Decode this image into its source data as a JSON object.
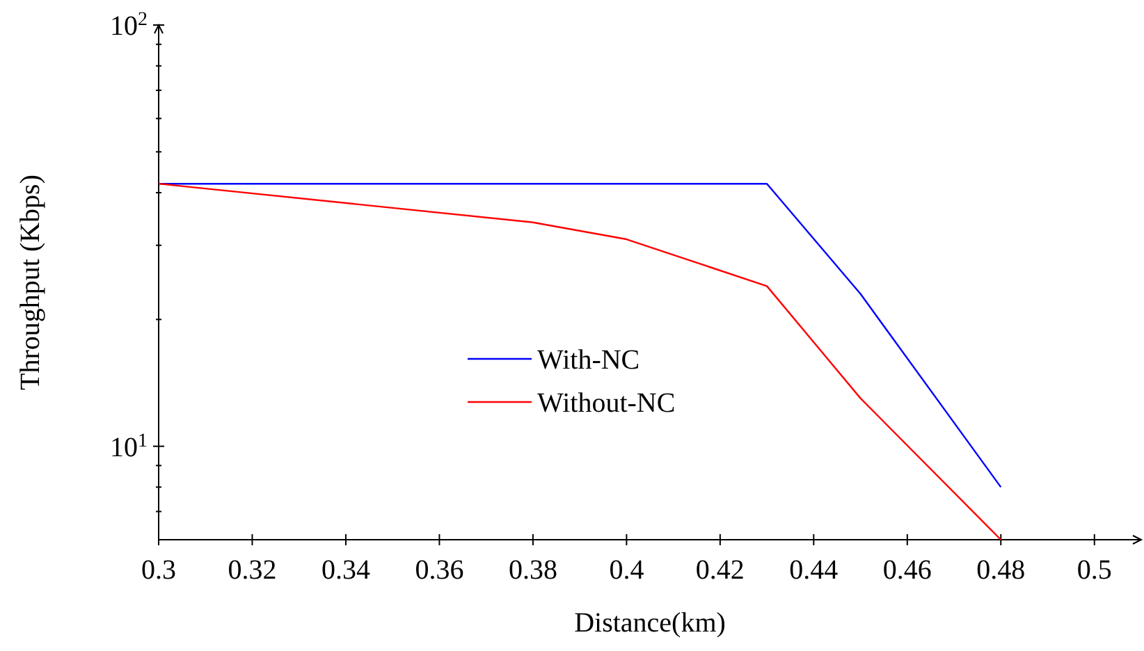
{
  "chart_data": {
    "type": "line",
    "xlabel": "Distance(km)",
    "ylabel": "Throughput (Kbps)",
    "x": [
      0.3,
      0.38,
      0.4,
      0.43,
      0.45,
      0.48
    ],
    "series": [
      {
        "name": "With-NC",
        "color": "#0000ff",
        "values": [
          42,
          42,
          42,
          42,
          23,
          8
        ]
      },
      {
        "name": "Without-NC",
        "color": "#ff0000",
        "values": [
          42,
          34,
          31,
          24,
          13,
          6
        ]
      }
    ],
    "log": "y",
    "xlim": [
      0.3,
      0.51
    ],
    "ylim": [
      6,
      100
    ],
    "xticks": [
      0.3,
      0.32,
      0.34,
      0.36,
      0.38,
      0.4,
      0.42,
      0.44,
      0.46,
      0.48,
      0.5
    ],
    "yticks": [
      {
        "value": 7,
        "label": null
      },
      {
        "value": 8,
        "label": null
      },
      {
        "value": 9,
        "label": null
      },
      {
        "value": 10,
        "label": "10$^{1}$"
      },
      {
        "value": 20,
        "label": null
      },
      {
        "value": 30,
        "label": null
      },
      {
        "value": 40,
        "label": null
      },
      {
        "value": 50,
        "label": null
      },
      {
        "value": 60,
        "label": null
      },
      {
        "value": 70,
        "label": null
      },
      {
        "value": 80,
        "label": null
      },
      {
        "value": 90,
        "label": null
      },
      {
        "value": 100,
        "label": "10$^{2}$"
      }
    ],
    "grid": false,
    "legend": "center",
    "line_style": "solid"
  }
}
